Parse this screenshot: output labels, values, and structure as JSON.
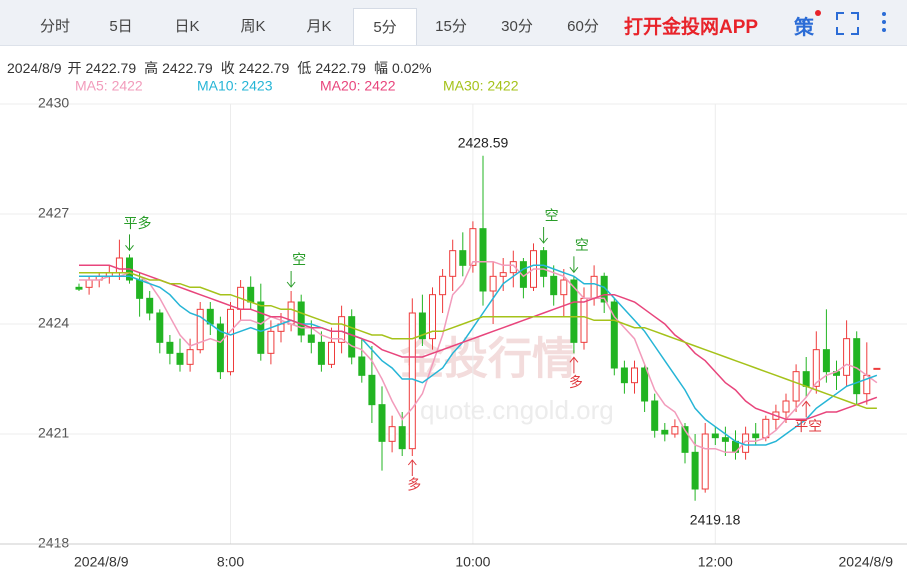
{
  "tabs": [
    "分时",
    "5日",
    "日K",
    "周K",
    "月K",
    "5分",
    "15分",
    "30分",
    "60分"
  ],
  "active_tab": 5,
  "brand": "打开金投网APP",
  "strategy": "策",
  "info": {
    "date": "2024/8/9",
    "items": [
      {
        "label": "开",
        "value": "2422.79"
      },
      {
        "label": "高",
        "value": "2422.79"
      },
      {
        "label": "收",
        "value": "2422.79"
      },
      {
        "label": "低",
        "value": "2422.79"
      },
      {
        "label": "幅",
        "value": "0.02%"
      }
    ]
  },
  "watermark": [
    "金投行情",
    "quote.cngold.org"
  ],
  "chart_data": {
    "type": "candlestick",
    "categories": [
      "2024/8/9",
      null,
      null,
      null,
      null,
      null,
      null,
      null,
      null,
      null,
      null,
      null,
      null,
      null,
      null,
      "8:00",
      null,
      null,
      null,
      null,
      null,
      null,
      null,
      null,
      null,
      null,
      null,
      null,
      null,
      null,
      null,
      null,
      null,
      null,
      null,
      null,
      null,
      null,
      null,
      "10:00",
      null,
      null,
      null,
      null,
      null,
      null,
      null,
      null,
      null,
      null,
      null,
      null,
      null,
      null,
      null,
      null,
      null,
      null,
      null,
      null,
      null,
      null,
      null,
      "12:00",
      null,
      null,
      null,
      null,
      null,
      null,
      null,
      null,
      null,
      null,
      null,
      null,
      null,
      null,
      null,
      "2024/8/9"
    ],
    "open": [
      2425.0,
      2425.0,
      2425.2,
      2425.3,
      2425.4,
      2425.8,
      2425.2,
      2424.7,
      2424.3,
      2423.5,
      2423.2,
      2422.9,
      2423.3,
      2424.4,
      2424.0,
      2422.7,
      2424.4,
      2425.0,
      2424.6,
      2423.2,
      2423.8,
      2424.0,
      2424.6,
      2423.7,
      2423.5,
      2422.9,
      2423.5,
      2424.2,
      2423.1,
      2422.6,
      2421.8,
      2420.8,
      2421.2,
      2420.6,
      2424.3,
      2423.6,
      2424.8,
      2425.3,
      2426.0,
      2425.6,
      2426.6,
      2424.9,
      2425.3,
      2425.4,
      2425.7,
      2425.0,
      2426.0,
      2425.3,
      2424.8,
      2425.2,
      2423.5,
      2424.7,
      2425.3,
      2424.6,
      2422.8,
      2422.4,
      2422.8,
      2421.9,
      2421.1,
      2421.0,
      2421.2,
      2420.5,
      2419.5,
      2421.0,
      2420.9,
      2420.8,
      2420.5,
      2421.0,
      2420.9,
      2421.4,
      2421.6,
      2421.9,
      2422.7,
      2422.3,
      2423.3,
      2422.7,
      2422.6,
      2423.6,
      2422.1,
      2422.79
    ],
    "high": [
      2425.1,
      2425.3,
      2425.4,
      2425.6,
      2426.3,
      2425.9,
      2425.4,
      2424.9,
      2424.4,
      2423.7,
      2423.6,
      2423.6,
      2424.6,
      2424.6,
      2424.2,
      2424.6,
      2425.2,
      2425.3,
      2425.1,
      2424.1,
      2424.3,
      2424.9,
      2424.8,
      2424.1,
      2423.8,
      2423.9,
      2424.5,
      2424.4,
      2423.6,
      2423.4,
      2422.3,
      2421.5,
      2421.6,
      2424.7,
      2424.8,
      2425.0,
      2425.5,
      2426.3,
      2426.5,
      2426.8,
      2428.59,
      2425.7,
      2425.8,
      2426.0,
      2425.8,
      2426.2,
      2426.1,
      2425.6,
      2425.5,
      2425.3,
      2425.0,
      2425.6,
      2425.4,
      2424.7,
      2423.0,
      2423.0,
      2422.9,
      2422.1,
      2421.3,
      2421.4,
      2421.3,
      2421.0,
      2421.3,
      2421.2,
      2421.2,
      2421.1,
      2421.2,
      2421.3,
      2421.5,
      2421.8,
      2422.1,
      2422.9,
      2423.1,
      2423.8,
      2424.4,
      2423.0,
      2424.1,
      2423.8,
      2423.5,
      2422.79
    ],
    "low": [
      2424.9,
      2424.8,
      2425.0,
      2425.1,
      2425.2,
      2425.1,
      2424.2,
      2424.1,
      2423.2,
      2422.9,
      2422.7,
      2422.7,
      2423.2,
      2423.7,
      2422.5,
      2422.6,
      2424.1,
      2424.4,
      2423.0,
      2422.9,
      2423.5,
      2423.8,
      2423.5,
      2423.2,
      2422.7,
      2422.8,
      2423.2,
      2422.9,
      2422.4,
      2421.3,
      2420.0,
      2420.5,
      2420.4,
      2420.4,
      2423.4,
      2423.3,
      2424.3,
      2424.9,
      2425.3,
      2425.4,
      2424.5,
      2424.0,
      2424.9,
      2425.0,
      2424.7,
      2424.9,
      2425.0,
      2424.5,
      2424.2,
      2423.2,
      2423.3,
      2424.5,
      2424.3,
      2422.6,
      2422.1,
      2422.1,
      2421.6,
      2420.9,
      2420.8,
      2420.9,
      2420.2,
      2419.18,
      2419.4,
      2420.7,
      2420.4,
      2420.3,
      2420.3,
      2420.7,
      2420.8,
      2421.1,
      2421.3,
      2421.6,
      2422.0,
      2422.1,
      2422.4,
      2422.2,
      2422.3,
      2421.8,
      2421.8,
      2422.79
    ],
    "close": [
      2424.95,
      2425.2,
      2425.3,
      2425.4,
      2425.8,
      2425.2,
      2424.7,
      2424.3,
      2423.5,
      2423.2,
      2422.9,
      2423.3,
      2424.4,
      2424.0,
      2422.7,
      2424.4,
      2425.0,
      2424.6,
      2423.2,
      2423.8,
      2424.0,
      2424.6,
      2423.7,
      2423.5,
      2422.9,
      2423.5,
      2424.2,
      2423.1,
      2422.6,
      2421.8,
      2420.8,
      2421.2,
      2420.6,
      2424.3,
      2423.6,
      2424.8,
      2425.3,
      2426.0,
      2425.6,
      2426.6,
      2424.9,
      2425.3,
      2425.4,
      2425.7,
      2425.0,
      2426.0,
      2425.3,
      2424.8,
      2425.2,
      2423.5,
      2424.7,
      2425.3,
      2424.6,
      2422.8,
      2422.4,
      2422.8,
      2421.9,
      2421.1,
      2421.0,
      2421.2,
      2420.5,
      2419.5,
      2421.0,
      2420.9,
      2420.8,
      2420.5,
      2421.0,
      2420.9,
      2421.4,
      2421.6,
      2421.9,
      2422.7,
      2422.3,
      2423.3,
      2422.7,
      2422.6,
      2423.6,
      2422.1,
      2422.6,
      2422.79
    ],
    "up_color": "#ee3b3b",
    "down_color": "#22b422",
    "series": [
      {
        "name": "MA5: 2422",
        "color": "#f29bbb",
        "values": [
          2425.2,
          2425.2,
          2425.2,
          2425.3,
          2425.3,
          2425.4,
          2425.3,
          2425.1,
          2424.7,
          2424.2,
          2423.7,
          2423.4,
          2423.5,
          2423.6,
          2423.5,
          2423.8,
          2424.1,
          2424.1,
          2424.0,
          2424.2,
          2424.1,
          2424.0,
          2423.9,
          2423.9,
          2423.7,
          2423.6,
          2423.6,
          2423.4,
          2423.3,
          2423.0,
          2422.5,
          2421.9,
          2421.4,
          2421.7,
          2422.1,
          2422.9,
          2423.7,
          2424.8,
          2425.1,
          2425.7,
          2425.7,
          2425.7,
          2425.6,
          2425.6,
          2425.3,
          2425.5,
          2425.5,
          2425.4,
          2425.3,
          2425.0,
          2424.7,
          2424.7,
          2424.7,
          2424.2,
          2423.9,
          2423.6,
          2422.9,
          2422.2,
          2421.8,
          2421.6,
          2421.1,
          2420.7,
          2420.6,
          2420.6,
          2420.5,
          2420.5,
          2420.8,
          2420.8,
          2420.9,
          2421.1,
          2421.4,
          2421.7,
          2422.0,
          2422.4,
          2422.6,
          2422.7,
          2422.9,
          2422.8,
          2422.6,
          2422.4
        ]
      },
      {
        "name": "MA10: 2423",
        "color": "#26b5d6",
        "values": [
          2425.3,
          2425.3,
          2425.3,
          2425.3,
          2425.3,
          2425.3,
          2425.2,
          2425.1,
          2425.0,
          2424.8,
          2424.5,
          2424.3,
          2424.2,
          2424.0,
          2423.8,
          2423.7,
          2423.8,
          2423.9,
          2423.8,
          2423.9,
          2424.0,
          2424.1,
          2424.0,
          2424.0,
          2423.9,
          2423.8,
          2423.8,
          2423.7,
          2423.6,
          2423.3,
          2423.0,
          2422.8,
          2422.5,
          2422.5,
          2422.4,
          2422.6,
          2422.8,
          2423.2,
          2423.5,
          2423.9,
          2424.3,
          2424.7,
          2425.1,
          2425.3,
          2425.5,
          2425.6,
          2425.6,
          2425.5,
          2425.4,
          2425.3,
          2425.1,
          2425.1,
          2425.0,
          2424.7,
          2424.4,
          2424.1,
          2423.8,
          2423.4,
          2423.0,
          2422.6,
          2422.2,
          2421.7,
          2421.4,
          2421.2,
          2421.0,
          2420.8,
          2420.7,
          2420.7,
          2420.7,
          2420.8,
          2421.0,
          2421.2,
          2421.4,
          2421.7,
          2421.9,
          2422.1,
          2422.3,
          2422.4,
          2422.5,
          2422.6
        ]
      },
      {
        "name": "MA20: 2422",
        "color": "#e8457c",
        "values": [
          2425.6,
          2425.6,
          2425.6,
          2425.6,
          2425.5,
          2425.5,
          2425.4,
          2425.3,
          2425.2,
          2425.1,
          2425.0,
          2424.9,
          2424.8,
          2424.7,
          2424.6,
          2424.5,
          2424.4,
          2424.4,
          2424.3,
          2424.2,
          2424.2,
          2424.1,
          2424.0,
          2423.9,
          2423.9,
          2423.8,
          2423.8,
          2423.7,
          2423.6,
          2423.5,
          2423.3,
          2423.2,
          2423.1,
          2423.1,
          2423.1,
          2423.2,
          2423.3,
          2423.4,
          2423.5,
          2423.6,
          2423.7,
          2423.8,
          2423.9,
          2424.0,
          2424.1,
          2424.2,
          2424.3,
          2424.4,
          2424.5,
          2424.6,
          2424.6,
          2424.7,
          2424.8,
          2424.8,
          2424.7,
          2424.6,
          2424.4,
          2424.2,
          2424.0,
          2423.7,
          2423.5,
          2423.2,
          2423.0,
          2422.7,
          2422.4,
          2422.2,
          2421.9,
          2421.7,
          2421.6,
          2421.5,
          2421.4,
          2421.4,
          2421.4,
          2421.5,
          2421.6,
          2421.6,
          2421.7,
          2421.8,
          2421.9,
          2422.0
        ]
      },
      {
        "name": "MA30: 2422",
        "color": "#a5c21a",
        "values": [
          2425.4,
          2425.4,
          2425.4,
          2425.4,
          2425.4,
          2425.4,
          2425.3,
          2425.2,
          2425.2,
          2425.1,
          2425.1,
          2425.0,
          2425.0,
          2424.9,
          2424.8,
          2424.8,
          2424.7,
          2424.6,
          2424.5,
          2424.5,
          2424.4,
          2424.4,
          2424.3,
          2424.2,
          2424.1,
          2424.0,
          2424.0,
          2423.9,
          2423.8,
          2423.7,
          2423.7,
          2423.6,
          2423.6,
          2423.6,
          2423.7,
          2423.8,
          2423.8,
          2423.9,
          2424.0,
          2424.1,
          2424.2,
          2424.2,
          2424.2,
          2424.2,
          2424.2,
          2424.2,
          2424.2,
          2424.2,
          2424.2,
          2424.2,
          2424.2,
          2424.1,
          2424.1,
          2424.1,
          2424.0,
          2423.9,
          2423.9,
          2423.8,
          2423.7,
          2423.6,
          2423.5,
          2423.4,
          2423.3,
          2423.2,
          2423.1,
          2423.0,
          2422.9,
          2422.8,
          2422.7,
          2422.6,
          2422.5,
          2422.4,
          2422.3,
          2422.2,
          2422.1,
          2422.0,
          2421.9,
          2421.8,
          2421.7,
          2421.7
        ]
      }
    ],
    "ylim": [
      2418,
      2430
    ],
    "yticks": [
      2418,
      2421,
      2424,
      2427,
      2430
    ],
    "grid": true,
    "annotations": [
      {
        "text": "平多",
        "at": 5,
        "side": "above",
        "color": "#2a9d2a"
      },
      {
        "text": "空",
        "at": 21,
        "side": "above",
        "color": "#2a9d2a"
      },
      {
        "text": "多",
        "at": 33,
        "side": "below",
        "color": "#e0383e"
      },
      {
        "text": "空",
        "at": 46,
        "side": "above",
        "color": "#2a9d2a"
      },
      {
        "text": "空",
        "at": 49,
        "side": "above",
        "color": "#2a9d2a"
      },
      {
        "text": "多",
        "at": 49,
        "side": "below",
        "color": "#e0383e"
      },
      {
        "text": "平空",
        "at": 72,
        "side": "below",
        "color": "#e0383e"
      }
    ],
    "max_label_at": 40,
    "min_label_at": 61
  }
}
